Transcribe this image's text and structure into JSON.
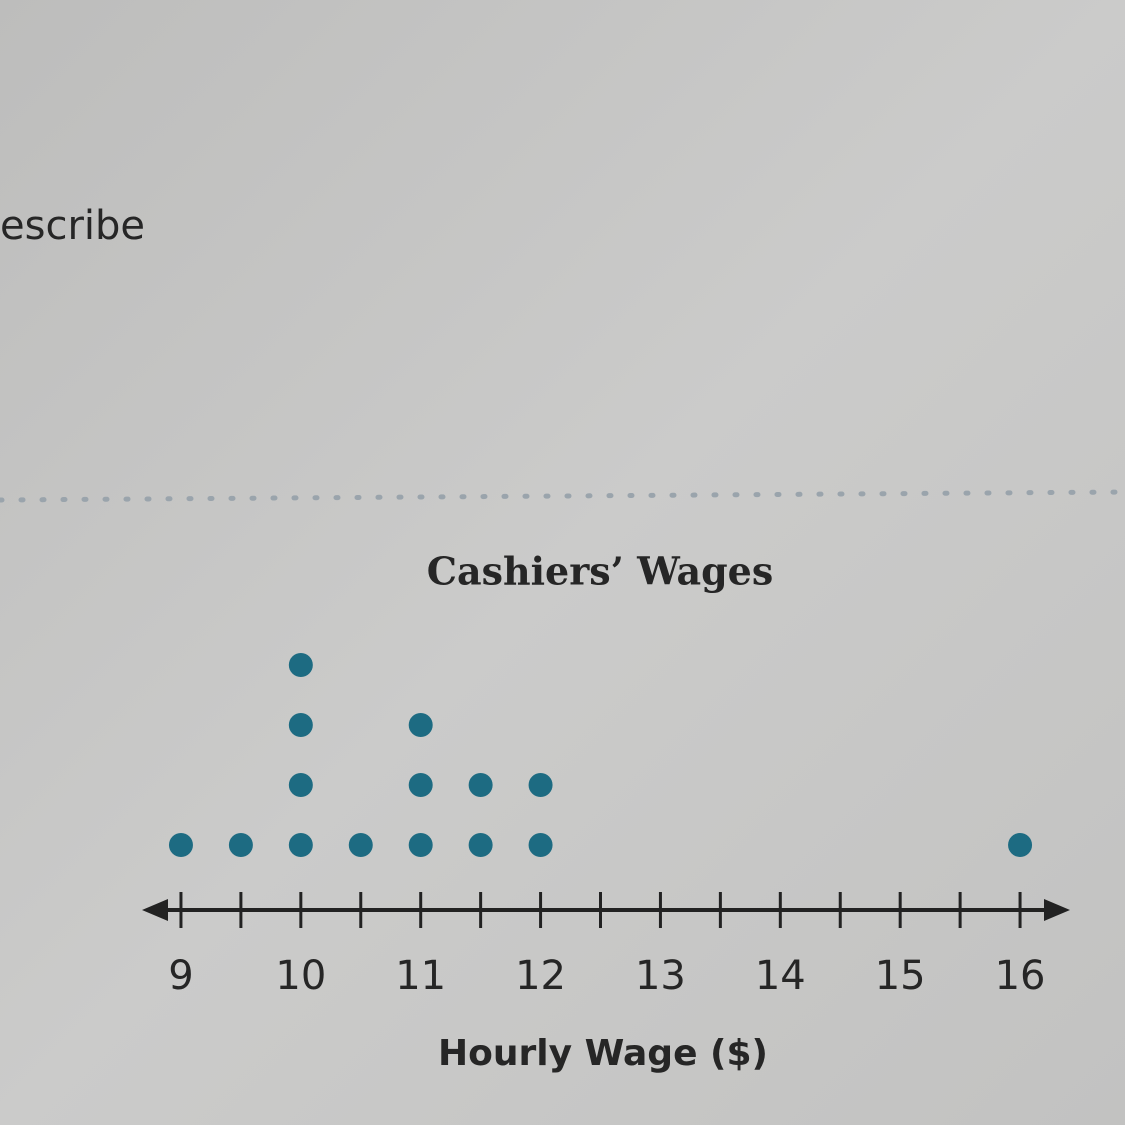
{
  "page_text": "escribe",
  "chart_data": {
    "type": "dot",
    "title": "Cashiers’ Wages",
    "x_label": "Hourly Wage ($)",
    "x": [
      9,
      9.5,
      10,
      10.5,
      11,
      11.5,
      12,
      16
    ],
    "values": [
      1,
      1,
      4,
      1,
      3,
      2,
      2,
      1
    ],
    "color": "#1d6b82",
    "xlim": [
      8.7,
      16.4
    ],
    "xticks": [
      9,
      10,
      11,
      12,
      13,
      14,
      15,
      16
    ],
    "minor_xticks": [
      9.5,
      10.5,
      11.5,
      12.5,
      13.5,
      14.5,
      15.5
    ]
  }
}
